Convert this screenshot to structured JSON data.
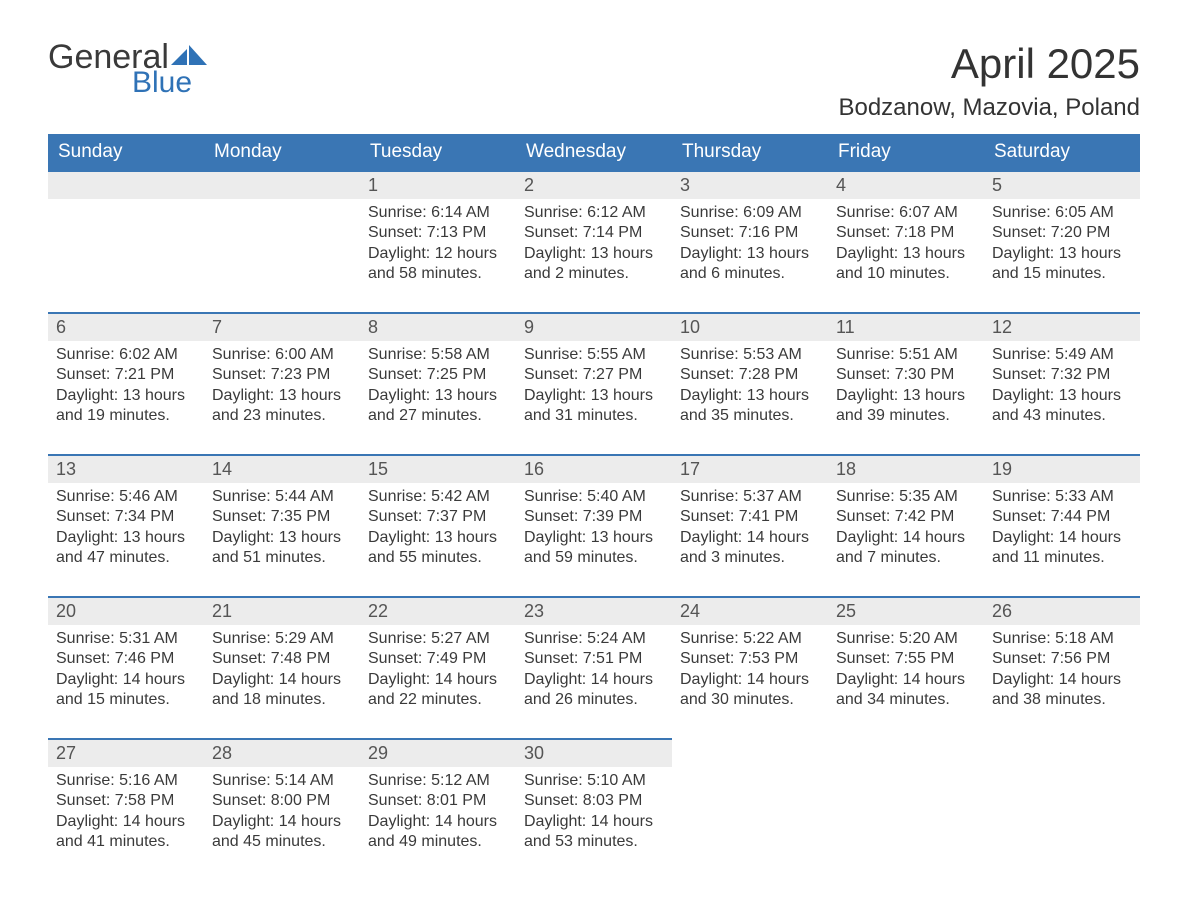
{
  "logo": {
    "text1": "General",
    "text2": "Blue"
  },
  "title": "April 2025",
  "location": "Bodzanow, Mazovia, Poland",
  "colors": {
    "header_bg": "#3a76b4",
    "header_text": "#ffffff",
    "daynum_bg": "#ececec",
    "rule": "#3a76b4",
    "logo_blue": "#2f72b6"
  },
  "columns": [
    "Sunday",
    "Monday",
    "Tuesday",
    "Wednesday",
    "Thursday",
    "Friday",
    "Saturday"
  ],
  "weeks": [
    [
      null,
      null,
      {
        "n": "1",
        "sunrise": "6:14 AM",
        "sunset": "7:13 PM",
        "dl1": "12 hours",
        "dl2": "58 minutes."
      },
      {
        "n": "2",
        "sunrise": "6:12 AM",
        "sunset": "7:14 PM",
        "dl1": "13 hours",
        "dl2": "2 minutes."
      },
      {
        "n": "3",
        "sunrise": "6:09 AM",
        "sunset": "7:16 PM",
        "dl1": "13 hours",
        "dl2": "6 minutes."
      },
      {
        "n": "4",
        "sunrise": "6:07 AM",
        "sunset": "7:18 PM",
        "dl1": "13 hours",
        "dl2": "10 minutes."
      },
      {
        "n": "5",
        "sunrise": "6:05 AM",
        "sunset": "7:20 PM",
        "dl1": "13 hours",
        "dl2": "15 minutes."
      }
    ],
    [
      {
        "n": "6",
        "sunrise": "6:02 AM",
        "sunset": "7:21 PM",
        "dl1": "13 hours",
        "dl2": "19 minutes."
      },
      {
        "n": "7",
        "sunrise": "6:00 AM",
        "sunset": "7:23 PM",
        "dl1": "13 hours",
        "dl2": "23 minutes."
      },
      {
        "n": "8",
        "sunrise": "5:58 AM",
        "sunset": "7:25 PM",
        "dl1": "13 hours",
        "dl2": "27 minutes."
      },
      {
        "n": "9",
        "sunrise": "5:55 AM",
        "sunset": "7:27 PM",
        "dl1": "13 hours",
        "dl2": "31 minutes."
      },
      {
        "n": "10",
        "sunrise": "5:53 AM",
        "sunset": "7:28 PM",
        "dl1": "13 hours",
        "dl2": "35 minutes."
      },
      {
        "n": "11",
        "sunrise": "5:51 AM",
        "sunset": "7:30 PM",
        "dl1": "13 hours",
        "dl2": "39 minutes."
      },
      {
        "n": "12",
        "sunrise": "5:49 AM",
        "sunset": "7:32 PM",
        "dl1": "13 hours",
        "dl2": "43 minutes."
      }
    ],
    [
      {
        "n": "13",
        "sunrise": "5:46 AM",
        "sunset": "7:34 PM",
        "dl1": "13 hours",
        "dl2": "47 minutes."
      },
      {
        "n": "14",
        "sunrise": "5:44 AM",
        "sunset": "7:35 PM",
        "dl1": "13 hours",
        "dl2": "51 minutes."
      },
      {
        "n": "15",
        "sunrise": "5:42 AM",
        "sunset": "7:37 PM",
        "dl1": "13 hours",
        "dl2": "55 minutes."
      },
      {
        "n": "16",
        "sunrise": "5:40 AM",
        "sunset": "7:39 PM",
        "dl1": "13 hours",
        "dl2": "59 minutes."
      },
      {
        "n": "17",
        "sunrise": "5:37 AM",
        "sunset": "7:41 PM",
        "dl1": "14 hours",
        "dl2": "3 minutes."
      },
      {
        "n": "18",
        "sunrise": "5:35 AM",
        "sunset": "7:42 PM",
        "dl1": "14 hours",
        "dl2": "7 minutes."
      },
      {
        "n": "19",
        "sunrise": "5:33 AM",
        "sunset": "7:44 PM",
        "dl1": "14 hours",
        "dl2": "11 minutes."
      }
    ],
    [
      {
        "n": "20",
        "sunrise": "5:31 AM",
        "sunset": "7:46 PM",
        "dl1": "14 hours",
        "dl2": "15 minutes."
      },
      {
        "n": "21",
        "sunrise": "5:29 AM",
        "sunset": "7:48 PM",
        "dl1": "14 hours",
        "dl2": "18 minutes."
      },
      {
        "n": "22",
        "sunrise": "5:27 AM",
        "sunset": "7:49 PM",
        "dl1": "14 hours",
        "dl2": "22 minutes."
      },
      {
        "n": "23",
        "sunrise": "5:24 AM",
        "sunset": "7:51 PM",
        "dl1": "14 hours",
        "dl2": "26 minutes."
      },
      {
        "n": "24",
        "sunrise": "5:22 AM",
        "sunset": "7:53 PM",
        "dl1": "14 hours",
        "dl2": "30 minutes."
      },
      {
        "n": "25",
        "sunrise": "5:20 AM",
        "sunset": "7:55 PM",
        "dl1": "14 hours",
        "dl2": "34 minutes."
      },
      {
        "n": "26",
        "sunrise": "5:18 AM",
        "sunset": "7:56 PM",
        "dl1": "14 hours",
        "dl2": "38 minutes."
      }
    ],
    [
      {
        "n": "27",
        "sunrise": "5:16 AM",
        "sunset": "7:58 PM",
        "dl1": "14 hours",
        "dl2": "41 minutes."
      },
      {
        "n": "28",
        "sunrise": "5:14 AM",
        "sunset": "8:00 PM",
        "dl1": "14 hours",
        "dl2": "45 minutes."
      },
      {
        "n": "29",
        "sunrise": "5:12 AM",
        "sunset": "8:01 PM",
        "dl1": "14 hours",
        "dl2": "49 minutes."
      },
      {
        "n": "30",
        "sunrise": "5:10 AM",
        "sunset": "8:03 PM",
        "dl1": "14 hours",
        "dl2": "53 minutes."
      },
      null,
      null,
      null
    ]
  ],
  "labels": {
    "sunrise": "Sunrise: ",
    "sunset": "Sunset: ",
    "daylight": "Daylight: ",
    "and": "and "
  }
}
